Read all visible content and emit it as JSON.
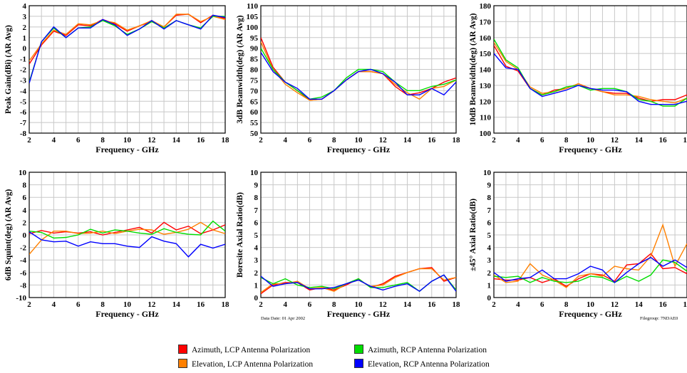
{
  "chart_data": [
    {
      "type": "line",
      "xlabel": "Frequency - GHz",
      "ylabel": "Peak Gain(dBi) (AR Avg)",
      "xlim": [
        2,
        18
      ],
      "ylim": [
        -8,
        4
      ],
      "xticks": [
        2,
        4,
        6,
        8,
        10,
        12,
        14,
        16,
        18
      ],
      "yticks": [
        -8,
        -7,
        -6,
        -5,
        -4,
        -3,
        -2,
        -1,
        0,
        1,
        2,
        3,
        4
      ],
      "x": [
        2,
        3,
        4,
        5,
        6,
        7,
        8,
        9,
        10,
        11,
        12,
        13,
        14,
        15,
        16,
        17,
        18
      ],
      "series": [
        {
          "name": "Azimuth, LCP Antenna Polarization",
          "color": "#ff0000",
          "values": [
            -1.5,
            0.3,
            1.6,
            1.2,
            2.2,
            2.1,
            2.7,
            2.3,
            1.6,
            2.1,
            2.5,
            2.0,
            3.1,
            3.2,
            2.4,
            3.1,
            2.8
          ]
        },
        {
          "name": "Elevation, LCP Antenna Polarization",
          "color": "#ff8000",
          "values": [
            -1.2,
            0.4,
            1.7,
            1.3,
            2.3,
            2.2,
            2.6,
            2.4,
            1.7,
            2.1,
            2.6,
            2.0,
            3.2,
            3.2,
            2.5,
            3.0,
            2.7
          ]
        },
        {
          "name": "Azimuth, RCP Antenna Polarization",
          "color": "#00dd00",
          "values": [
            -3.2,
            0.6,
            1.9,
            1.0,
            1.9,
            2.0,
            2.6,
            2.1,
            1.3,
            1.8,
            2.5,
            1.9,
            2.6,
            2.2,
            1.9,
            3.0,
            3.0
          ]
        },
        {
          "name": "Elevation, RCP Antenna Polarization",
          "color": "#0000ff",
          "values": [
            -3.3,
            0.6,
            2.0,
            1.0,
            1.9,
            1.9,
            2.7,
            2.2,
            1.2,
            1.8,
            2.6,
            1.8,
            2.6,
            2.2,
            1.8,
            3.1,
            2.9
          ]
        }
      ]
    },
    {
      "type": "line",
      "xlabel": "Frequency - GHz",
      "ylabel": "3dB Beamwidth(deg) (AR Avg)",
      "xlim": [
        2,
        18
      ],
      "ylim": [
        50,
        110
      ],
      "xticks": [
        2,
        4,
        6,
        8,
        10,
        12,
        14,
        16,
        18
      ],
      "yticks": [
        50,
        55,
        60,
        65,
        70,
        75,
        80,
        85,
        90,
        95,
        100,
        105,
        110
      ],
      "x": [
        2,
        3,
        4,
        5,
        6,
        7,
        8,
        9,
        10,
        11,
        12,
        13,
        14,
        15,
        16,
        17,
        18
      ],
      "series": [
        {
          "name": "Azimuth, LCP Antenna Polarization",
          "color": "#ff0000",
          "values": [
            95,
            81,
            74,
            70,
            65.5,
            66,
            70,
            75,
            79,
            79,
            78,
            72,
            68,
            69,
            71,
            74,
            76
          ]
        },
        {
          "name": "Elevation, LCP Antenna Polarization",
          "color": "#ff8000",
          "values": [
            93,
            80,
            73,
            69,
            65.5,
            66,
            70,
            75,
            79,
            79,
            78,
            73,
            69,
            66,
            71,
            72,
            75
          ]
        },
        {
          "name": "Azimuth, RCP Antenna Polarization",
          "color": "#00dd00",
          "values": [
            90,
            80,
            74,
            70,
            66,
            67,
            70,
            76,
            80,
            80,
            79,
            74,
            70,
            70,
            72,
            73,
            75
          ]
        },
        {
          "name": "Elevation, RCP Antenna Polarization",
          "color": "#0000ff",
          "values": [
            88,
            79,
            74,
            71,
            66,
            66,
            70,
            75,
            79,
            80,
            78,
            74,
            68,
            68,
            71,
            68,
            74
          ]
        }
      ]
    },
    {
      "type": "line",
      "xlabel": "Frequency - GHz",
      "ylabel": "10dB Beamwidth(deg) (AR Avg)",
      "xlim": [
        2,
        18
      ],
      "ylim": [
        100,
        180
      ],
      "xticks": [
        2,
        4,
        6,
        8,
        10,
        12,
        14,
        16,
        18
      ],
      "yticks": [
        100,
        110,
        120,
        130,
        140,
        150,
        160,
        170,
        180
      ],
      "x": [
        2,
        3,
        4,
        5,
        6,
        7,
        8,
        9,
        10,
        11,
        12,
        13,
        14,
        15,
        16,
        17,
        18
      ],
      "series": [
        {
          "name": "Azimuth, LCP Antenna Polarization",
          "color": "#ff0000",
          "values": [
            155,
            142,
            139,
            128,
            124,
            127,
            128,
            131,
            128,
            126,
            125,
            125,
            122,
            120,
            121,
            121,
            124
          ]
        },
        {
          "name": "Elevation, LCP Antenna Polarization",
          "color": "#ff8000",
          "values": [
            157,
            145,
            140,
            129,
            125,
            126,
            128,
            131,
            128,
            126,
            124,
            124,
            123,
            121,
            120,
            119,
            122
          ]
        },
        {
          "name": "Azimuth, RCP Antenna Polarization",
          "color": "#00dd00",
          "values": [
            159,
            146,
            141,
            128,
            124,
            126,
            129,
            130,
            127,
            128,
            128,
            126,
            121,
            120,
            117,
            117,
            122
          ]
        },
        {
          "name": "Elevation, RCP Antenna Polarization",
          "color": "#0000ff",
          "values": [
            150,
            141,
            140,
            128,
            123,
            125,
            127,
            130,
            128,
            127,
            127,
            126,
            120,
            118,
            118,
            118,
            120
          ]
        }
      ]
    },
    {
      "type": "line",
      "xlabel": "Frequency - GHz",
      "ylabel": "6dB Squint(deg) (AR Avg)",
      "xlim": [
        2,
        18
      ],
      "ylim": [
        -10,
        10
      ],
      "xticks": [
        2,
        4,
        6,
        8,
        10,
        12,
        14,
        16,
        18
      ],
      "yticks": [
        -10,
        -8,
        -6,
        -4,
        -2,
        0,
        2,
        4,
        6,
        8,
        10
      ],
      "x": [
        2,
        3,
        4,
        5,
        6,
        7,
        8,
        9,
        10,
        11,
        12,
        13,
        14,
        15,
        16,
        17,
        18
      ],
      "series": [
        {
          "name": "Azimuth, LCP Antenna Polarization",
          "color": "#ff0000",
          "values": [
            0.2,
            0.7,
            0.3,
            0.5,
            0.3,
            0.5,
            0.0,
            0.4,
            0.8,
            1.2,
            0.3,
            2.0,
            0.8,
            1.4,
            0.2,
            0.8,
            1.6
          ]
        },
        {
          "name": "Elevation, LCP Antenna Polarization",
          "color": "#ff8000",
          "values": [
            -3.1,
            -0.8,
            0.6,
            0.6,
            0.2,
            0.3,
            0.6,
            0.2,
            0.6,
            0.9,
            0.8,
            0.1,
            0.4,
            0.9,
            2.0,
            0.8,
            0.2
          ]
        },
        {
          "name": "Azimuth, RCP Antenna Polarization",
          "color": "#00dd00",
          "values": [
            0.6,
            0.4,
            -0.5,
            -0.4,
            0.0,
            0.9,
            0.3,
            0.8,
            0.6,
            0.3,
            0.1,
            1.0,
            0.4,
            0.1,
            0.0,
            2.2,
            0.6
          ]
        },
        {
          "name": "Elevation, RCP Antenna Polarization",
          "color": "#0000ff",
          "values": [
            0.5,
            -0.8,
            -1.1,
            -1.0,
            -1.8,
            -1.1,
            -1.4,
            -1.4,
            -1.8,
            -2.0,
            -0.3,
            -1.0,
            -1.4,
            -3.5,
            -1.5,
            -2.1,
            -1.5
          ]
        }
      ]
    },
    {
      "type": "line",
      "xlabel": "Frequency - GHz",
      "ylabel": "Boresite Axial Ratio(dB)",
      "xlim": [
        2,
        18
      ],
      "ylim": [
        0,
        10
      ],
      "xticks": [
        2,
        4,
        6,
        8,
        10,
        12,
        14,
        16,
        18
      ],
      "yticks": [
        0,
        1,
        2,
        3,
        4,
        5,
        6,
        7,
        8,
        9,
        10
      ],
      "x": [
        2,
        3,
        4,
        5,
        6,
        7,
        8,
        9,
        10,
        11,
        12,
        13,
        14,
        15,
        16,
        17,
        18
      ],
      "series": [
        {
          "name": "Azimuth, LCP Antenna Polarization",
          "color": "#ff0000",
          "values": [
            0.3,
            1.0,
            1.2,
            1.2,
            0.6,
            0.8,
            0.6,
            1.0,
            1.5,
            0.8,
            1.1,
            1.7,
            2.0,
            2.3,
            2.4,
            1.3,
            1.6
          ]
        },
        {
          "name": "Elevation, LCP Antenna Polarization",
          "color": "#ff8000",
          "values": [
            0.4,
            1.1,
            1.1,
            1.3,
            0.7,
            0.8,
            0.5,
            1.1,
            1.4,
            0.9,
            1.0,
            1.6,
            2.0,
            2.3,
            2.3,
            1.4,
            1.6
          ]
        },
        {
          "name": "Azimuth, RCP Antenna Polarization",
          "color": "#00dd00",
          "values": [
            1.6,
            1.1,
            1.5,
            1.0,
            0.8,
            0.9,
            0.7,
            1.1,
            1.5,
            0.8,
            0.8,
            1.0,
            1.2,
            0.5,
            1.3,
            1.8,
            0.6
          ]
        },
        {
          "name": "Elevation, RCP Antenna Polarization",
          "color": "#0000ff",
          "values": [
            1.7,
            0.9,
            1.1,
            1.2,
            0.7,
            0.7,
            0.8,
            1.1,
            1.4,
            0.9,
            0.6,
            0.9,
            1.1,
            0.5,
            1.3,
            1.8,
            0.5
          ]
        }
      ]
    },
    {
      "type": "line",
      "xlabel": "Frequency - GHz",
      "ylabel": "±45° Axial Ratio(dB)",
      "xlim": [
        2,
        18
      ],
      "ylim": [
        0,
        10
      ],
      "xticks": [
        2,
        4,
        6,
        8,
        10,
        12,
        14,
        16,
        18
      ],
      "yticks": [
        0,
        1,
        2,
        3,
        4,
        5,
        6,
        7,
        8,
        9,
        10
      ],
      "x": [
        2,
        3,
        4,
        5,
        6,
        7,
        8,
        9,
        10,
        11,
        12,
        13,
        14,
        15,
        16,
        17,
        18
      ],
      "series": [
        {
          "name": "Azimuth, LCP Antenna Polarization",
          "color": "#ff0000",
          "values": [
            1.5,
            1.4,
            1.4,
            1.6,
            1.2,
            1.5,
            0.9,
            1.5,
            1.9,
            1.8,
            1.3,
            2.6,
            2.7,
            3.5,
            2.3,
            2.4,
            1.9
          ]
        },
        {
          "name": "Elevation, LCP Antenna Polarization",
          "color": "#ff8000",
          "values": [
            1.8,
            1.2,
            1.3,
            2.7,
            1.8,
            1.4,
            0.8,
            1.7,
            1.9,
            1.7,
            2.5,
            2.3,
            2.2,
            3.3,
            5.8,
            2.5,
            4.3
          ]
        },
        {
          "name": "Azimuth, RCP Antenna Polarization",
          "color": "#00dd00",
          "values": [
            1.7,
            1.6,
            1.7,
            1.2,
            1.6,
            1.3,
            1.2,
            1.3,
            1.7,
            1.6,
            1.2,
            1.7,
            1.3,
            1.8,
            3.0,
            2.8,
            2.1
          ]
        },
        {
          "name": "Elevation, RCP Antenna Polarization",
          "color": "#0000ff",
          "values": [
            2.0,
            1.3,
            1.5,
            1.6,
            2.2,
            1.5,
            1.5,
            1.9,
            2.5,
            2.2,
            1.2,
            2.0,
            2.7,
            3.2,
            2.5,
            3.0,
            2.4
          ]
        }
      ]
    }
  ],
  "annotations": {
    "date_note": "Data Date: 01 Apr 2002",
    "file_note": "Filegroup: 7NDAE0"
  },
  "legend": [
    {
      "label": "Azimuth, LCP Antenna Polarization",
      "color": "#ff0000"
    },
    {
      "label": "Azimuth, RCP Antenna Polarization",
      "color": "#00dd00"
    },
    {
      "label": "Elevation, LCP Antenna Polarization",
      "color": "#ff8000"
    },
    {
      "label": "Elevation, RCP Antenna Polarization",
      "color": "#0000ff"
    }
  ]
}
